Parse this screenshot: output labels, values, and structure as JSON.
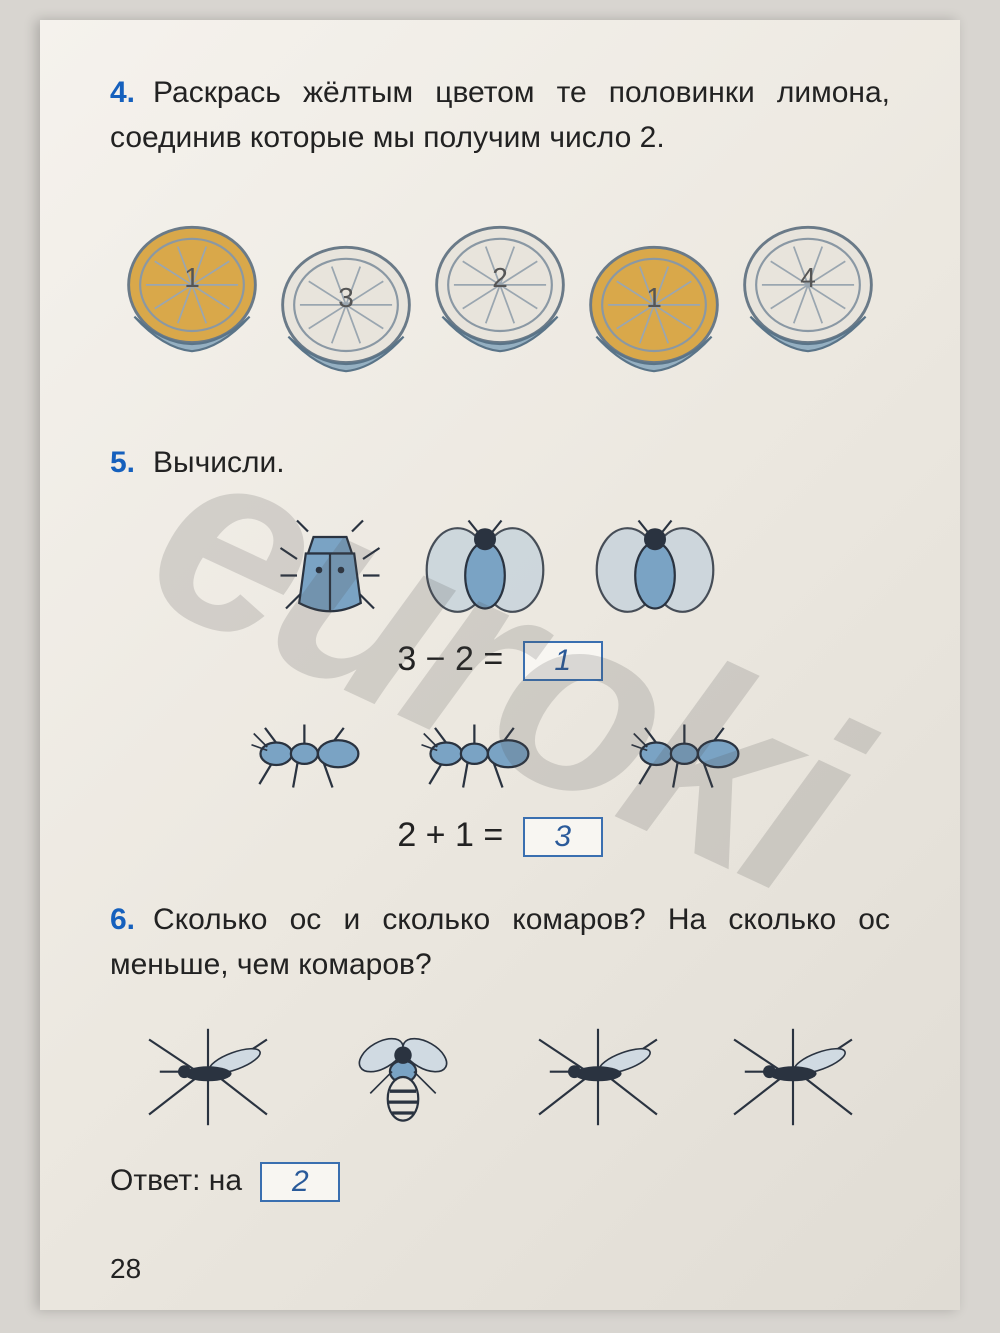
{
  "watermark_text": "euroki",
  "page_number": "28",
  "task4": {
    "number": "4.",
    "text": "Раскрась жёлтым цветом те половинки лимона, соединив которые мы получим число 2.",
    "lemons": [
      {
        "label": "1",
        "filled": true,
        "fill_color": "#d9a84a"
      },
      {
        "label": "3",
        "filled": false,
        "fill_color": "#e8e4dc"
      },
      {
        "label": "2",
        "filled": false,
        "fill_color": "#e8e4dc"
      },
      {
        "label": "1",
        "filled": true,
        "fill_color": "#d9a84a"
      },
      {
        "label": "4",
        "filled": false,
        "fill_color": "#e8e4dc"
      }
    ]
  },
  "task5": {
    "number": "5.",
    "title": "Вычисли.",
    "eq1": {
      "expr": "3 − 2 =",
      "answer": "1"
    },
    "eq2": {
      "expr": "2 + 1 =",
      "answer": "3"
    }
  },
  "task6": {
    "number": "6.",
    "text": "Сколько ос и сколько комаров? На сколько ос меньше, чем комаров?",
    "answer_label": "Ответ:  на",
    "answer": "2"
  },
  "colors": {
    "task_num": "#1560bd",
    "box_border": "#3a6fb0",
    "handwritten": "#2a5a9a",
    "insect_blue": "#7aa3c4",
    "insect_dark": "#2a3340"
  }
}
